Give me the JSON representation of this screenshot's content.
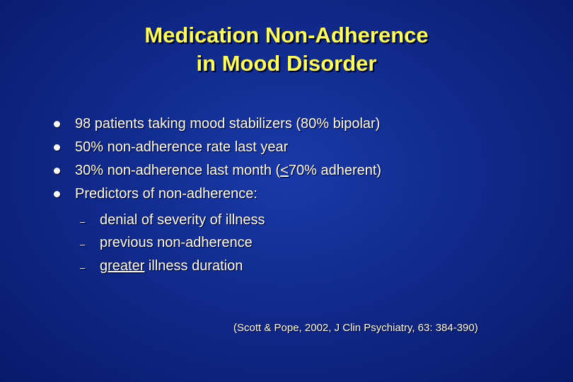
{
  "slide": {
    "title": [
      "Medication Non-Adherence",
      "in Mood Disorder"
    ],
    "bullets": [
      [
        {
          "text": "98 patients taking mood stabilizers (80% bipolar)"
        }
      ],
      [
        {
          "text": "50% non-adherence rate last year"
        }
      ],
      [
        {
          "text": "30% non-adherence last month ("
        },
        {
          "text": "<",
          "underlined": true
        },
        {
          "text": "70% adherent)"
        }
      ],
      [
        {
          "text": "Predictors of non-adherence:"
        }
      ]
    ],
    "sub_bullets": [
      [
        {
          "text": "denial of severity of illness"
        }
      ],
      [
        {
          "text": "previous non-adherence"
        }
      ],
      [
        {
          "text": "greater",
          "underlined": true
        },
        {
          "text": " illness duration"
        }
      ]
    ],
    "citation": "(Scott & Pope, 2002, J Clin Psychiatry, 63: 384-390)"
  }
}
